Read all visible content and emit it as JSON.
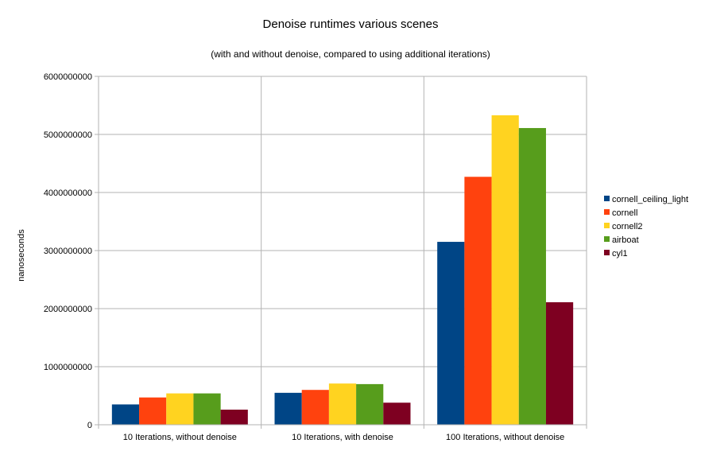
{
  "chart_data": {
    "type": "bar",
    "title": "Denoise runtimes various scenes",
    "subtitle": "(with and without denoise, compared to using additional iterations)",
    "xlabel": "",
    "ylabel": "nanoseconds",
    "ylim": [
      0,
      6000000000
    ],
    "yticks": [
      "0",
      "1000000000",
      "2000000000",
      "3000000000",
      "4000000000",
      "5000000000",
      "6000000000"
    ],
    "categories": [
      "10 Iterations, without denoise",
      "10 Iterations, with denoise",
      "100 Iterations, without denoise"
    ],
    "series": [
      {
        "name": "cornell_ceiling_light",
        "color": "#004586",
        "values": [
          350000000,
          550000000,
          3150000000
        ]
      },
      {
        "name": "cornell",
        "color": "#ff420e",
        "values": [
          470000000,
          600000000,
          4270000000
        ]
      },
      {
        "name": "cornell2",
        "color": "#ffd320",
        "values": [
          540000000,
          710000000,
          5330000000
        ]
      },
      {
        "name": "airboat",
        "color": "#579d1c",
        "values": [
          540000000,
          700000000,
          5110000000
        ]
      },
      {
        "name": "cyl1",
        "color": "#7e0021",
        "values": [
          260000000,
          380000000,
          2110000000
        ]
      }
    ],
    "grid": true,
    "legend_position": "right"
  }
}
